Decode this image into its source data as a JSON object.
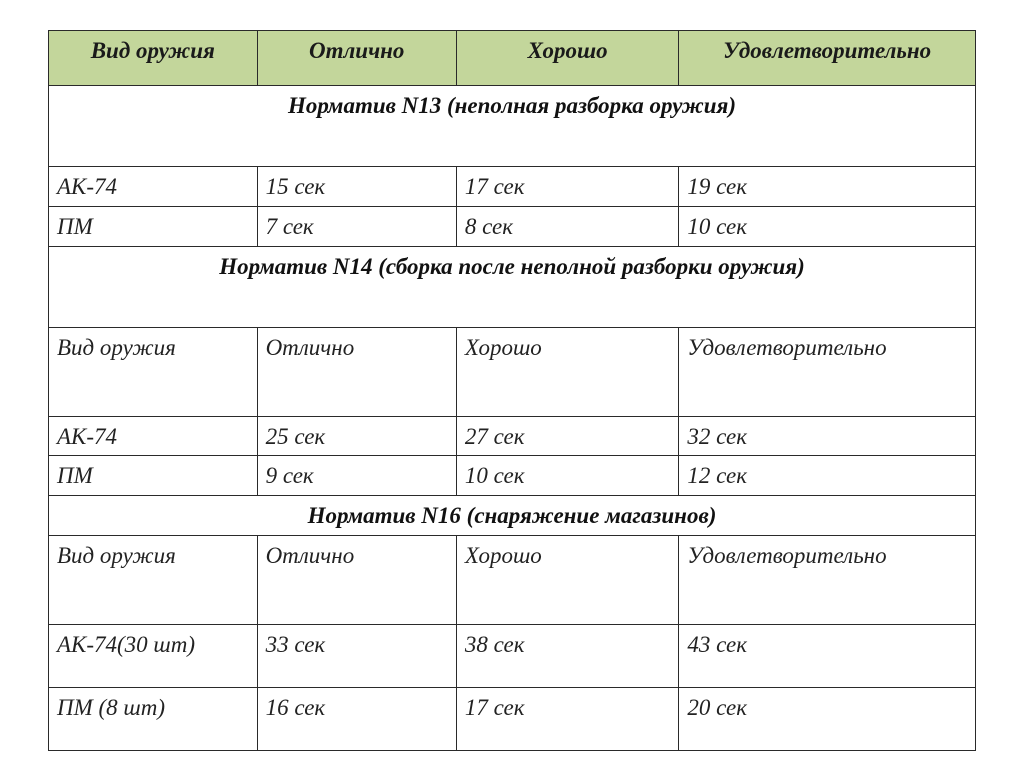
{
  "headers": {
    "weapon": "Вид оружия",
    "excellent": "Отлично",
    "good": "Хорошо",
    "satisfactory": "Удовлетворительно"
  },
  "sections": {
    "n13": {
      "title": "Норматив N13 (неполная  разборка оружия)",
      "rows": [
        {
          "weapon": "АК-74",
          "excellent": "15 сек",
          "good": "17 сек",
          "satisfactory": "19 сек"
        },
        {
          "weapon": "ПМ",
          "excellent": "7 сек",
          "good": "8 сек",
          "satisfactory": "10 сек"
        }
      ]
    },
    "n14": {
      "title": "Норматив N14 (сборка после неполной разборки оружия)",
      "subheader": {
        "weapon": "Вид оружия",
        "excellent": "Отлично",
        "good": "Хорошо",
        "satisfactory": "Удовлетворительно"
      },
      "rows": [
        {
          "weapon": "АК-74",
          "excellent": "25 сек",
          "good": "27 сек",
          "satisfactory": "32 сек"
        },
        {
          "weapon": "ПМ",
          "excellent": "9 сек",
          "good": "10 сек",
          "satisfactory": "12 сек"
        }
      ]
    },
    "n16": {
      "title": "Норматив N16 (снаряжение магазинов)",
      "subheader": {
        "weapon": "Вид оружия",
        "excellent": "Отлично",
        "good": "Хорошо",
        "satisfactory": "Удовлетворительно"
      },
      "rows": [
        {
          "weapon": "АК-74(30 шт)",
          "excellent": "33 сек",
          "good": "38 сек",
          "satisfactory": "43 сек"
        },
        {
          "weapon": "ПМ (8 шт)",
          "excellent": "16 сек",
          "good": "17 сек",
          "satisfactory": "20 сек"
        }
      ]
    }
  },
  "style": {
    "header_bg": "#c3d69b",
    "border_color": "#2a2a2a",
    "font_family": "Times New Roman",
    "base_fontsize_pt": 17,
    "col_widths_pct": [
      22.5,
      21.5,
      24,
      32
    ]
  }
}
